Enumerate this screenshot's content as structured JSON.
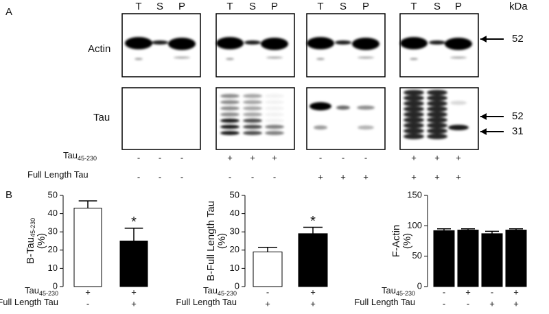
{
  "panel_a": {
    "label": "A",
    "lane_headers": [
      "T",
      "S",
      "P",
      "T",
      "S",
      "P",
      "T",
      "S",
      "P",
      "T",
      "S",
      "P"
    ],
    "unit": "kDa",
    "rows": [
      "Actin",
      "Tau"
    ],
    "markers": [
      52,
      52,
      31
    ],
    "conditions": [
      {
        "name": "Tau",
        "subscript": "45-230",
        "signs": [
          "-",
          "-",
          "-",
          "+",
          "+",
          "+",
          "-",
          "-",
          "-",
          "+",
          "+",
          "+"
        ]
      },
      {
        "name": "Full Length Tau",
        "signs": [
          "-",
          "-",
          "-",
          "-",
          "-",
          "-",
          "+",
          "+",
          "+",
          "+",
          "+",
          "+"
        ]
      }
    ]
  },
  "panel_b": {
    "label": "B"
  },
  "chart_data": [
    {
      "type": "bar",
      "ylabel": {
        "text": "B-Tau",
        "subscript": "45-230",
        "unit": "(%)"
      },
      "values": [
        43,
        25
      ],
      "errors": [
        4,
        7
      ],
      "colors": [
        "#ffffff",
        "#000000"
      ],
      "significance": [
        null,
        "*"
      ],
      "ylim": [
        0,
        50
      ],
      "yticks": [
        0,
        10,
        20,
        30,
        40,
        50
      ],
      "conditions": [
        {
          "name": "Tau",
          "subscript": "45-230",
          "signs": [
            "+",
            "+"
          ]
        },
        {
          "name": "Full Length Tau",
          "signs": [
            "-",
            "+"
          ]
        }
      ]
    },
    {
      "type": "bar",
      "ylabel": {
        "text": "B-Full Length Tau",
        "unit": "(%)"
      },
      "values": [
        19,
        29
      ],
      "errors": [
        2.5,
        3.5
      ],
      "colors": [
        "#ffffff",
        "#000000"
      ],
      "significance": [
        null,
        "*"
      ],
      "ylim": [
        0,
        50
      ],
      "yticks": [
        0,
        10,
        20,
        30,
        40,
        50
      ],
      "conditions": [
        {
          "name": "Tau",
          "subscript": "45-230",
          "signs": [
            "-",
            "+"
          ]
        },
        {
          "name": "Full Length Tau",
          "signs": [
            "+",
            "+"
          ]
        }
      ]
    },
    {
      "type": "bar",
      "ylabel": {
        "text": "F-Actin",
        "unit": "(%)"
      },
      "values": [
        92,
        93,
        87,
        93
      ],
      "errors": [
        3,
        2,
        4,
        2
      ],
      "colors": [
        "#000000",
        "#000000",
        "#000000",
        "#000000"
      ],
      "ylim": [
        0,
        150
      ],
      "yticks": [
        0,
        50,
        100,
        150
      ],
      "conditions": [
        {
          "name": "Tau",
          "subscript": "45-230",
          "signs": [
            "-",
            "+",
            "-",
            "+"
          ]
        },
        {
          "name": "Full Length Tau",
          "signs": [
            "-",
            "-",
            "+",
            "+"
          ]
        }
      ]
    }
  ]
}
